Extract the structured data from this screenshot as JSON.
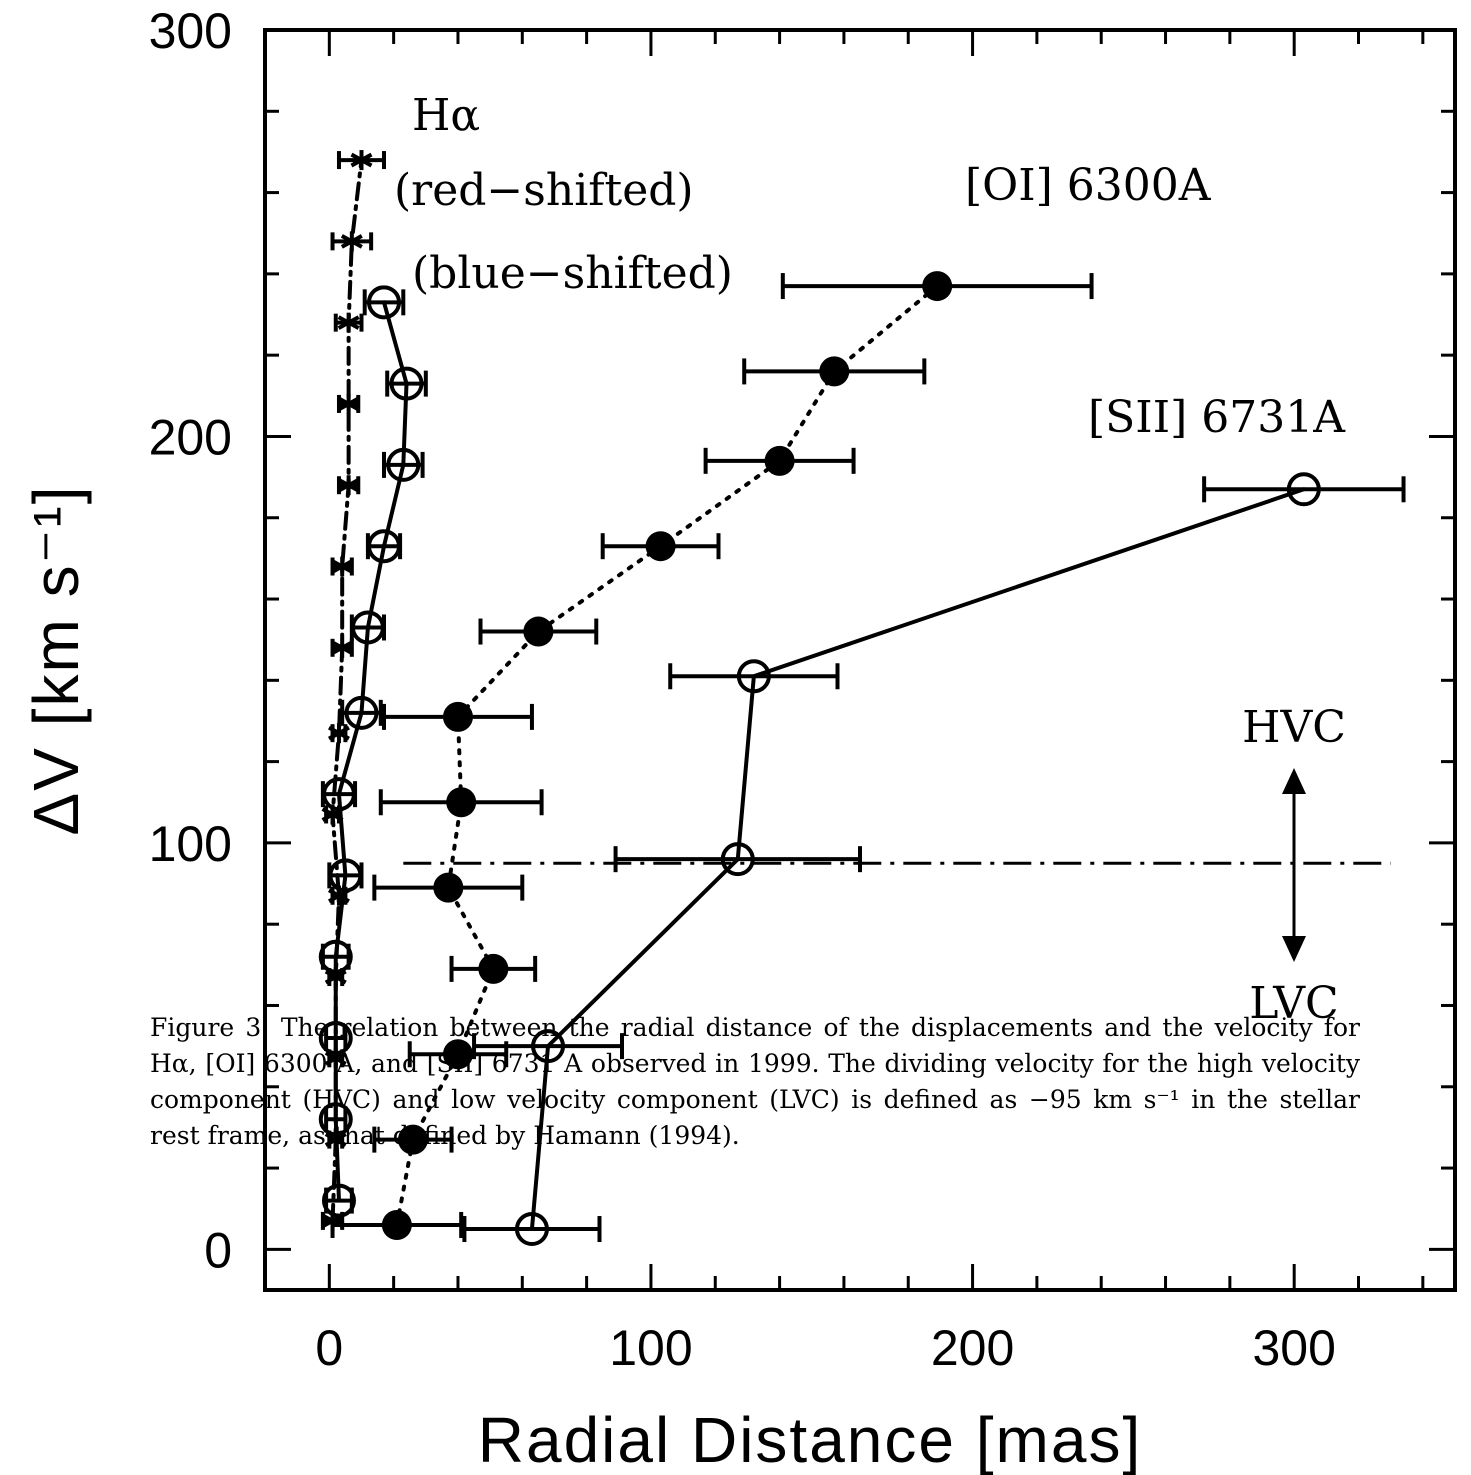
{
  "chart_data": {
    "type": "scatter",
    "xlabel": "Radial Distance [mas]",
    "ylabel": "ΔV [km s⁻¹]",
    "xlim": [
      -20,
      350
    ],
    "ylim": [
      -10,
      300
    ],
    "x_ticks": [
      0,
      100,
      200,
      300
    ],
    "y_ticks": [
      0,
      100,
      200,
      300
    ],
    "series": [
      {
        "name": "Hα (red-shifted)",
        "marker": "star",
        "line": "dash-dot",
        "points": [
          {
            "x": 1,
            "y": 7,
            "err": 3
          },
          {
            "x": 2,
            "y": 27,
            "err": 2
          },
          {
            "x": 2,
            "y": 47,
            "err": 2
          },
          {
            "x": 2,
            "y": 67,
            "err": 2
          },
          {
            "x": 3,
            "y": 87,
            "err": 2
          },
          {
            "x": 1,
            "y": 107,
            "err": 2
          },
          {
            "x": 3,
            "y": 127,
            "err": 2
          },
          {
            "x": 4,
            "y": 148,
            "err": 3
          },
          {
            "x": 4,
            "y": 168,
            "err": 3
          },
          {
            "x": 6,
            "y": 188,
            "err": 3
          },
          {
            "x": 6,
            "y": 208,
            "err": 3
          },
          {
            "x": 6,
            "y": 228,
            "err": 4
          },
          {
            "x": 7,
            "y": 248,
            "err": 6
          },
          {
            "x": 10,
            "y": 268,
            "err": 7
          }
        ]
      },
      {
        "name": "Hα (blue-shifted)",
        "marker": "open-circle",
        "line": "solid",
        "points": [
          {
            "x": 3,
            "y": 12,
            "err": 4
          },
          {
            "x": 2,
            "y": 32,
            "err": 3
          },
          {
            "x": 2,
            "y": 52,
            "err": 3
          },
          {
            "x": 2,
            "y": 72,
            "err": 4
          },
          {
            "x": 5,
            "y": 92,
            "err": 5
          },
          {
            "x": 3,
            "y": 112,
            "err": 5
          },
          {
            "x": 10,
            "y": 132,
            "err": 6
          },
          {
            "x": 12,
            "y": 153,
            "err": 5
          },
          {
            "x": 17,
            "y": 173,
            "err": 5
          },
          {
            "x": 23,
            "y": 193,
            "err": 6
          },
          {
            "x": 24,
            "y": 213,
            "err": 6
          },
          {
            "x": 17,
            "y": 233,
            "err": 6
          }
        ]
      },
      {
        "name": "[OI] 6300A",
        "marker": "filled-circle",
        "line": "dotted",
        "points": [
          {
            "x": 21,
            "y": 6,
            "err": 20
          },
          {
            "x": 26,
            "y": 27,
            "err": 12
          },
          {
            "x": 40,
            "y": 48,
            "err": 15
          },
          {
            "x": 51,
            "y": 69,
            "err": 13
          },
          {
            "x": 37,
            "y": 89,
            "err": 23
          },
          {
            "x": 41,
            "y": 110,
            "err": 25
          },
          {
            "x": 40,
            "y": 131,
            "err": 23
          },
          {
            "x": 65,
            "y": 152,
            "err": 18
          },
          {
            "x": 103,
            "y": 173,
            "err": 18
          },
          {
            "x": 140,
            "y": 194,
            "err": 23
          },
          {
            "x": 157,
            "y": 216,
            "err": 28
          },
          {
            "x": 189,
            "y": 237,
            "err": 48
          }
        ]
      },
      {
        "name": "[SII] 6731A",
        "marker": "open-circle",
        "line": "solid",
        "points": [
          {
            "x": 63,
            "y": 5,
            "err": 21
          },
          {
            "x": 68,
            "y": 50,
            "err": 23
          },
          {
            "x": 127,
            "y": 96,
            "err": 38
          },
          {
            "x": 132,
            "y": 141,
            "err": 26
          },
          {
            "x": 303,
            "y": 187,
            "err": 31
          }
        ]
      }
    ],
    "divider": {
      "y": 95,
      "x_from": 23,
      "x_to": 330
    },
    "annotations": {
      "ha": "Hα",
      "ha_red": "(red−shifted)",
      "ha_blue": "(blue−shifted)",
      "oi": "[OI] 6300A",
      "sii": "[SII] 6731A",
      "hvc": "HVC",
      "lvc": "LVC"
    }
  },
  "caption": "Figure 3: The relation between the radial distance of the displacements and the velocity for Hα, [OI] 6300 A, and [SII] 6731 A observed in 1999. The dividing velocity for the high velocity component (HVC) and low velocity component (LVC) is defined as −95 km s⁻¹ in the stellar rest frame, as that defined by Hamann (1994)."
}
